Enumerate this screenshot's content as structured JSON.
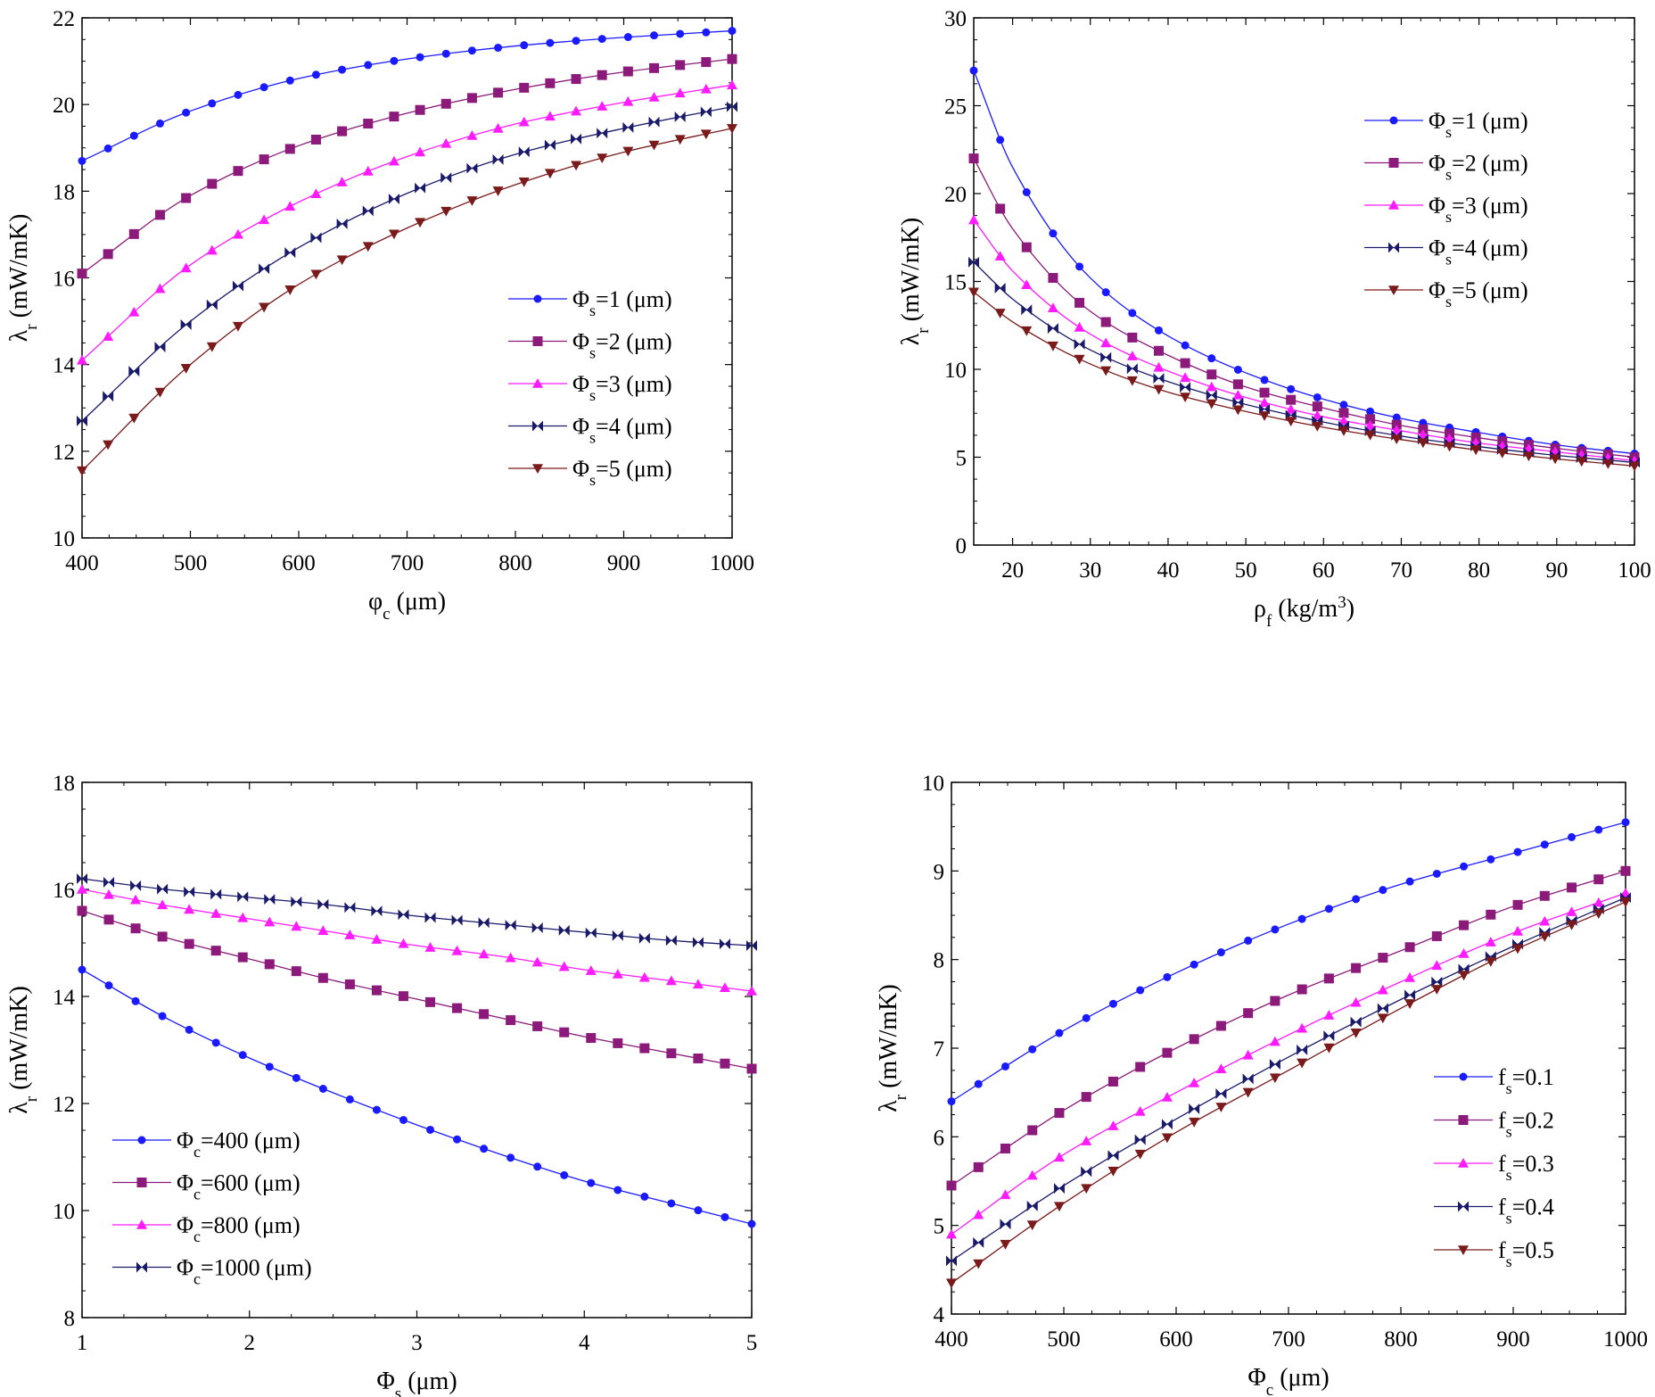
{
  "chart_data": [
    {
      "type": "line",
      "xlabel": "φ",
      "xlabel_sub": "c",
      "xlabel_unit": " (μm)",
      "ylabel": "λ",
      "ylabel_sub": "r",
      "ylabel_unit": " (mW/mK)",
      "xlim": [
        400,
        1000
      ],
      "ylim": [
        10,
        22
      ],
      "xticks": [
        "400",
        "500",
        "600",
        "700",
        "800",
        "900",
        "1000"
      ],
      "yticks": [
        "10",
        "12",
        "14",
        "16",
        "18",
        "20",
        "22"
      ],
      "legend_position": "lower-right",
      "series": [
        {
          "name": "Φ",
          "name_sub": "s",
          "name_suffix": "=1 (μm)",
          "color": "#1a1aff",
          "marker": "circle",
          "x": [
            400,
            500,
            600,
            700,
            800,
            900,
            1000
          ],
          "y": [
            18.7,
            19.85,
            20.6,
            21.05,
            21.35,
            21.55,
            21.7
          ]
        },
        {
          "name": "Φ",
          "name_sub": "s",
          "name_suffix": "=2 (μm)",
          "color": "#8b1a7a",
          "marker": "square",
          "x": [
            400,
            500,
            600,
            700,
            800,
            900,
            1000
          ],
          "y": [
            16.1,
            17.9,
            19.05,
            19.8,
            20.35,
            20.75,
            21.05
          ]
        },
        {
          "name": "Φ",
          "name_sub": "s",
          "name_suffix": "=3 (μm)",
          "color": "#ff1aff",
          "marker": "triangle-up",
          "x": [
            400,
            500,
            600,
            700,
            800,
            900,
            1000
          ],
          "y": [
            14.1,
            16.3,
            17.75,
            18.8,
            19.55,
            20.05,
            20.45
          ]
        },
        {
          "name": "Φ",
          "name_sub": "s",
          "name_suffix": "=4 (μm)",
          "color": "#1a1a6b",
          "marker": "bowtie",
          "x": [
            400,
            500,
            600,
            700,
            800,
            900,
            1000
          ],
          "y": [
            12.7,
            15.0,
            16.7,
            17.95,
            18.85,
            19.45,
            19.95
          ]
        },
        {
          "name": "Φ",
          "name_sub": "s",
          "name_suffix": "=5 (μm)",
          "color": "#7a1a1a",
          "marker": "triangle-down",
          "x": [
            400,
            500,
            600,
            700,
            800,
            900,
            1000
          ],
          "y": [
            11.55,
            14.0,
            15.85,
            17.15,
            18.15,
            18.9,
            19.45
          ]
        }
      ]
    },
    {
      "type": "line",
      "xlabel": "ρ",
      "xlabel_sub": "f",
      "xlabel_unit": " (kg/m",
      "xlabel_sup": "3",
      "xlabel_end": ")",
      "ylabel": "λ",
      "ylabel_sub": "r",
      "ylabel_unit": " (mW/mK)",
      "xlim": [
        15,
        100
      ],
      "ylim": [
        0,
        30
      ],
      "xticks": [
        "20",
        "30",
        "40",
        "50",
        "60",
        "70",
        "80",
        "90",
        "100"
      ],
      "yticks": [
        "0",
        "5",
        "10",
        "15",
        "20",
        "25",
        "30"
      ],
      "legend_position": "top-right",
      "series": [
        {
          "name": "Φ",
          "name_sub": "s",
          "name_suffix": "=1 (μm)",
          "color": "#1a1aff",
          "marker": "circle",
          "x": [
            15,
            20,
            30,
            40,
            50,
            60,
            70,
            80,
            90,
            100
          ],
          "y": [
            27.0,
            21.5,
            15.2,
            11.9,
            9.8,
            8.3,
            7.2,
            6.4,
            5.7,
            5.2
          ]
        },
        {
          "name": "Φ",
          "name_sub": "s",
          "name_suffix": "=2 (μm)",
          "color": "#8b1a7a",
          "marker": "square",
          "x": [
            15,
            20,
            30,
            40,
            50,
            60,
            70,
            80,
            90,
            100
          ],
          "y": [
            22.0,
            18.0,
            13.3,
            10.8,
            9.0,
            7.8,
            6.8,
            6.1,
            5.5,
            5.0
          ]
        },
        {
          "name": "Φ",
          "name_sub": "s",
          "name_suffix": "=3 (μm)",
          "color": "#ff1aff",
          "marker": "triangle-up",
          "x": [
            15,
            20,
            30,
            40,
            50,
            60,
            70,
            80,
            90,
            100
          ],
          "y": [
            18.5,
            15.6,
            12.0,
            9.9,
            8.4,
            7.3,
            6.5,
            5.8,
            5.3,
            4.8
          ]
        },
        {
          "name": "Φ",
          "name_sub": "s",
          "name_suffix": "=4 (μm)",
          "color": "#1a1a6b",
          "marker": "bowtie",
          "x": [
            15,
            20,
            30,
            40,
            50,
            60,
            70,
            80,
            90,
            100
          ],
          "y": [
            16.1,
            14.0,
            11.1,
            9.3,
            8.0,
            7.0,
            6.2,
            5.6,
            5.1,
            4.7
          ]
        },
        {
          "name": "Φ",
          "name_sub": "s",
          "name_suffix": "=5 (μm)",
          "color": "#7a1a1a",
          "marker": "triangle-down",
          "x": [
            15,
            20,
            30,
            40,
            50,
            60,
            70,
            80,
            90,
            100
          ],
          "y": [
            14.4,
            12.7,
            10.3,
            8.7,
            7.6,
            6.7,
            6.0,
            5.4,
            4.9,
            4.5
          ]
        }
      ]
    },
    {
      "type": "line",
      "xlabel": "Φ",
      "xlabel_sub": "s",
      "xlabel_unit": " (μm)",
      "ylabel": "λ",
      "ylabel_sub": "r",
      "ylabel_unit": " (mW/mK)",
      "xlim": [
        1,
        5
      ],
      "ylim": [
        8,
        18
      ],
      "xticks": [
        "1",
        "2",
        "3",
        "4",
        "5"
      ],
      "yticks": [
        "8",
        "10",
        "12",
        "14",
        "16",
        "18"
      ],
      "legend_position": "lower-left",
      "series": [
        {
          "name": "Φ",
          "name_sub": "c",
          "name_suffix": "=400 (μm)",
          "color": "#1a1aff",
          "marker": "circle",
          "x": [
            1,
            1.5,
            2,
            2.5,
            3,
            3.5,
            4,
            4.5,
            5
          ],
          "y": [
            14.5,
            13.6,
            12.85,
            12.2,
            11.6,
            11.05,
            10.55,
            10.15,
            9.75
          ]
        },
        {
          "name": "Φ",
          "name_sub": "c",
          "name_suffix": "=600 (μm)",
          "color": "#8b1a7a",
          "marker": "square",
          "x": [
            1,
            1.5,
            2,
            2.5,
            3,
            3.5,
            4,
            4.5,
            5
          ],
          "y": [
            15.6,
            15.1,
            14.7,
            14.3,
            13.95,
            13.6,
            13.25,
            12.95,
            12.65
          ]
        },
        {
          "name": "Φ",
          "name_sub": "c",
          "name_suffix": "=800 (μm)",
          "color": "#ff1aff",
          "marker": "triangle-up",
          "x": [
            1,
            1.5,
            2,
            2.5,
            3,
            3.5,
            4,
            4.5,
            5
          ],
          "y": [
            16.0,
            15.7,
            15.45,
            15.2,
            14.95,
            14.75,
            14.5,
            14.3,
            14.1
          ]
        },
        {
          "name": "Φ",
          "name_sub": "c",
          "name_suffix": "=1000 (μm)",
          "color": "#1a1a6b",
          "marker": "bowtie",
          "x": [
            1,
            1.5,
            2,
            2.5,
            3,
            3.5,
            4,
            4.5,
            5
          ],
          "y": [
            16.2,
            16.0,
            15.85,
            15.7,
            15.5,
            15.35,
            15.2,
            15.05,
            14.95
          ]
        }
      ]
    },
    {
      "type": "line",
      "xlabel": "Φ",
      "xlabel_sub": "c",
      "xlabel_unit": " (μm)",
      "ylabel": "λ",
      "ylabel_sub": "r",
      "ylabel_unit": " (mW/mK)",
      "xlim": [
        400,
        1000
      ],
      "ylim": [
        4,
        10
      ],
      "xticks": [
        "400",
        "500",
        "600",
        "700",
        "800",
        "900",
        "1000"
      ],
      "yticks": [
        "4",
        "5",
        "6",
        "7",
        "8",
        "9",
        "10"
      ],
      "legend_position": "lower-right",
      "series": [
        {
          "name": "f",
          "name_sub": "s",
          "name_suffix": "=0.1",
          "color": "#1a1aff",
          "marker": "circle",
          "x": [
            400,
            500,
            600,
            700,
            800,
            900,
            1000
          ],
          "y": [
            6.4,
            7.2,
            7.85,
            8.4,
            8.85,
            9.2,
            9.55
          ]
        },
        {
          "name": "f",
          "name_sub": "s",
          "name_suffix": "=0.2",
          "color": "#8b1a7a",
          "marker": "square",
          "x": [
            400,
            500,
            600,
            700,
            800,
            900,
            1000
          ],
          "y": [
            5.45,
            6.3,
            7.0,
            7.6,
            8.1,
            8.6,
            9.0
          ]
        },
        {
          "name": "f",
          "name_sub": "s",
          "name_suffix": "=0.3",
          "color": "#ff1aff",
          "marker": "triangle-up",
          "x": [
            400,
            500,
            600,
            700,
            800,
            900,
            1000
          ],
          "y": [
            4.9,
            5.8,
            6.5,
            7.15,
            7.75,
            8.3,
            8.75
          ]
        },
        {
          "name": "f",
          "name_sub": "s",
          "name_suffix": "=0.4",
          "color": "#1a1a6b",
          "marker": "bowtie",
          "x": [
            400,
            500,
            600,
            700,
            800,
            900,
            1000
          ],
          "y": [
            4.6,
            5.45,
            6.2,
            6.9,
            7.55,
            8.15,
            8.7
          ]
        },
        {
          "name": "f",
          "name_sub": "s",
          "name_suffix": "=0.5",
          "color": "#7a1a1a",
          "marker": "triangle-down",
          "x": [
            400,
            500,
            600,
            700,
            800,
            900,
            1000
          ],
          "y": [
            4.35,
            5.25,
            6.05,
            6.75,
            7.45,
            8.1,
            8.65
          ]
        }
      ]
    }
  ]
}
